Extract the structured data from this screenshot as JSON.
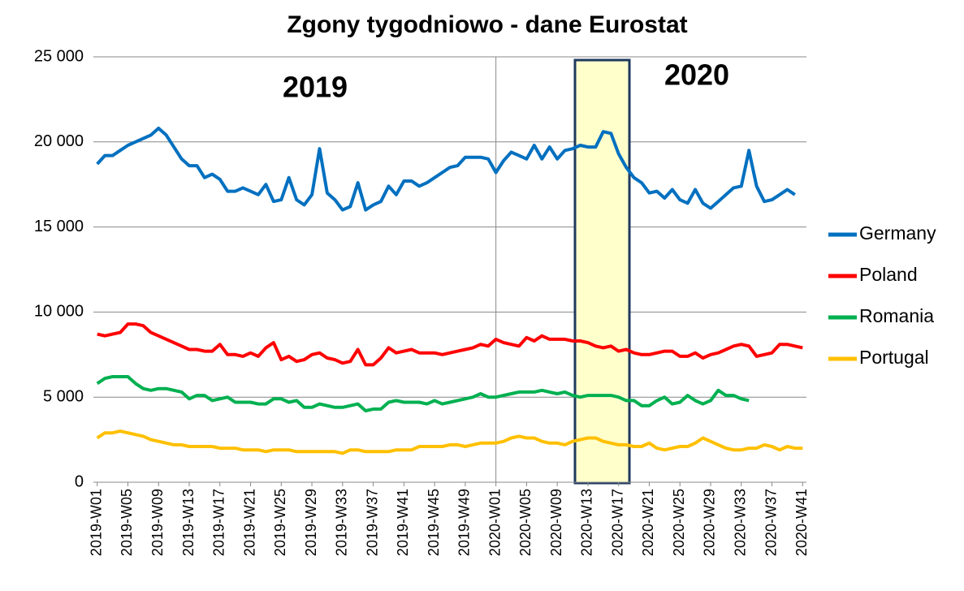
{
  "chart_data": {
    "type": "line",
    "title": "Zgony tygodniowo - dane Eurostat",
    "annotations": [
      "2019",
      "2020"
    ],
    "categories": [
      "2019-W01",
      null,
      null,
      null,
      "2019-W05",
      null,
      null,
      null,
      "2019-W09",
      null,
      null,
      null,
      "2019-W13",
      null,
      null,
      null,
      "2019-W17",
      null,
      null,
      null,
      "2019-W21",
      null,
      null,
      null,
      "2019-W25",
      null,
      null,
      null,
      "2019-W29",
      null,
      null,
      null,
      "2019-W33",
      null,
      null,
      null,
      "2019-W37",
      null,
      null,
      null,
      "2019-W41",
      null,
      null,
      null,
      "2019-W45",
      null,
      null,
      null,
      "2019-W49",
      null,
      null,
      null,
      "2020-W01",
      null,
      null,
      null,
      "2020-W05",
      null,
      null,
      null,
      "2020-W09",
      null,
      null,
      null,
      "2020-W13",
      null,
      null,
      null,
      "2020-W17",
      null,
      null,
      null,
      "2020-W21",
      null,
      null,
      null,
      "2020-W25",
      null,
      null,
      null,
      "2020-W29",
      null,
      null,
      null,
      "2020-W33",
      null,
      null,
      null,
      "2020-W37",
      null,
      null,
      null,
      "2020-W41"
    ],
    "series": [
      {
        "name": "Germany",
        "color": "#0070c0",
        "values": [
          18700,
          19200,
          19200,
          19500,
          19800,
          20000,
          20200,
          20400,
          20800,
          20400,
          19700,
          19000,
          18600,
          18600,
          17900,
          18100,
          17800,
          17100,
          17100,
          17300,
          17100,
          16900,
          17500,
          16500,
          16600,
          17900,
          16600,
          16300,
          16900,
          19600,
          17000,
          16600,
          16000,
          16200,
          17600,
          16000,
          16300,
          16500,
          17400,
          16900,
          17700,
          17700,
          17400,
          17600,
          17900,
          18200,
          18500,
          18600,
          19100,
          19100,
          19100,
          19000,
          18200,
          18900,
          19400,
          19200,
          19000,
          19800,
          19000,
          19700,
          19000,
          19500,
          19600,
          19800,
          19700,
          19700,
          20600,
          20500,
          19300,
          18500,
          17900,
          17600,
          17000,
          17100,
          16700,
          17200,
          16600,
          16400,
          17200,
          16400,
          16100,
          16500,
          16900,
          17300,
          17400,
          19500,
          17400,
          16500,
          16600,
          16900,
          17200,
          16900,
          null
        ]
      },
      {
        "name": "Poland",
        "color": "#ff0000",
        "values": [
          8700,
          8600,
          8700,
          8800,
          9300,
          9300,
          9200,
          8800,
          8600,
          8400,
          8200,
          8000,
          7800,
          7800,
          7700,
          7700,
          8100,
          7500,
          7500,
          7400,
          7600,
          7400,
          7900,
          8200,
          7200,
          7400,
          7100,
          7200,
          7500,
          7600,
          7300,
          7200,
          7000,
          7100,
          7800,
          6900,
          6900,
          7300,
          7900,
          7600,
          7700,
          7800,
          7600,
          7600,
          7600,
          7500,
          7600,
          7700,
          7800,
          7900,
          8100,
          8000,
          8400,
          8200,
          8100,
          8000,
          8500,
          8300,
          8600,
          8400,
          8400,
          8400,
          8300,
          8300,
          8200,
          8000,
          7900,
          8000,
          7700,
          7800,
          7600,
          7500,
          7500,
          7600,
          7700,
          7700,
          7400,
          7400,
          7600,
          7300,
          7500,
          7600,
          7800,
          8000,
          8100,
          8000,
          7400,
          7500,
          7600,
          8100,
          8100,
          8000,
          7900
        ]
      },
      {
        "name": "Romania",
        "color": "#00b050",
        "values": [
          5800,
          6100,
          6200,
          6200,
          6200,
          5800,
          5500,
          5400,
          5500,
          5500,
          5400,
          5300,
          4900,
          5100,
          5100,
          4800,
          4900,
          5000,
          4700,
          4700,
          4700,
          4600,
          4600,
          4900,
          4900,
          4700,
          4800,
          4400,
          4400,
          4600,
          4500,
          4400,
          4400,
          4500,
          4600,
          4200,
          4300,
          4300,
          4700,
          4800,
          4700,
          4700,
          4700,
          4600,
          4800,
          4600,
          4700,
          4800,
          4900,
          5000,
          5200,
          5000,
          5000,
          5100,
          5200,
          5300,
          5300,
          5300,
          5400,
          5300,
          5200,
          5300,
          5100,
          5000,
          5100,
          5100,
          5100,
          5100,
          5000,
          4800,
          4800,
          4500,
          4500,
          4800,
          5000,
          4600,
          4700,
          5100,
          4800,
          4600,
          4800,
          5400,
          5100,
          5100,
          4900,
          4800,
          null,
          null,
          null,
          null,
          null,
          null,
          null
        ]
      },
      {
        "name": "Portugal",
        "color": "#ffc000",
        "values": [
          2600,
          2900,
          2900,
          3000,
          2900,
          2800,
          2700,
          2500,
          2400,
          2300,
          2200,
          2200,
          2100,
          2100,
          2100,
          2100,
          2000,
          2000,
          2000,
          1900,
          1900,
          1900,
          1800,
          1900,
          1900,
          1900,
          1800,
          1800,
          1800,
          1800,
          1800,
          1800,
          1700,
          1900,
          1900,
          1800,
          1800,
          1800,
          1800,
          1900,
          1900,
          1900,
          2100,
          2100,
          2100,
          2100,
          2200,
          2200,
          2100,
          2200,
          2300,
          2300,
          2300,
          2400,
          2600,
          2700,
          2600,
          2600,
          2400,
          2300,
          2300,
          2200,
          2400,
          2500,
          2600,
          2600,
          2400,
          2300,
          2200,
          2200,
          2100,
          2100,
          2300,
          2000,
          1900,
          2000,
          2100,
          2100,
          2300,
          2600,
          2400,
          2200,
          2000,
          1900,
          1900,
          2000,
          2000,
          2200,
          2100,
          1900,
          2100,
          2000,
          2000
        ]
      }
    ],
    "ylim": [
      0,
      25000
    ],
    "yticks": [
      0,
      {
        "value": 5000,
        "label": "5 000"
      },
      {
        "value": 10000,
        "label": "10 000"
      },
      {
        "value": 15000,
        "label": "15 000"
      },
      {
        "value": 20000,
        "label": "20 000"
      },
      {
        "value": 25000,
        "label": "25 000"
      }
    ],
    "grid": true,
    "legend": "right"
  }
}
